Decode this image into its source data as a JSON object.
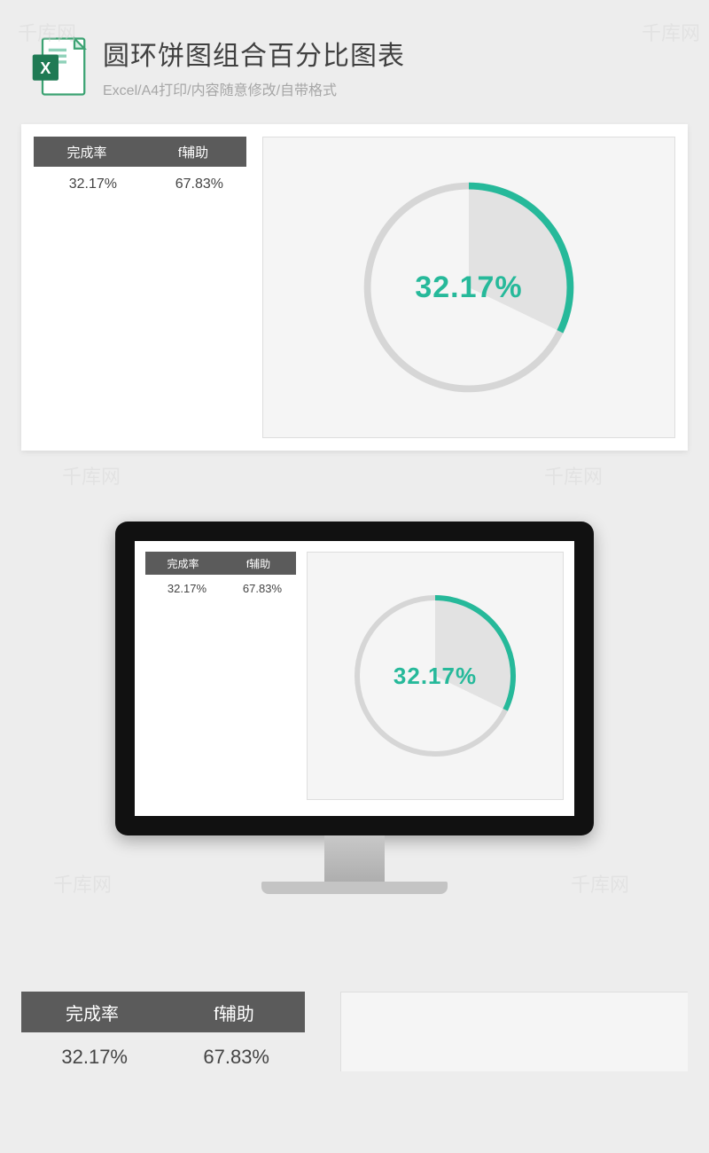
{
  "header": {
    "title": "圆环饼图组合百分比图表",
    "subtitle": "Excel/A4打印/内容随意修改/自带格式"
  },
  "table": {
    "headers": [
      "完成率",
      "f辅助"
    ],
    "row": [
      "32.17%",
      "67.83%"
    ]
  },
  "chart": {
    "type": "donut-pie-combo",
    "completion_pct": 32.17,
    "center_label": "32.17%",
    "ring_color": "#26b99a",
    "ring_bg_color": "#d6d6d6",
    "slice_fill_color": "#e2e2e2",
    "background_color": "#f5f5f5",
    "label_color": "#26b99a",
    "ring_stroke_width": 6,
    "label_fontsize": 34
  },
  "colors": {
    "page_bg": "#ededed",
    "card_bg": "#ffffff",
    "table_header_bg": "#5b5b5b",
    "table_header_fg": "#ffffff",
    "text_primary": "#404040",
    "text_secondary": "#a6a6a6"
  },
  "watermark_text": "千库网"
}
